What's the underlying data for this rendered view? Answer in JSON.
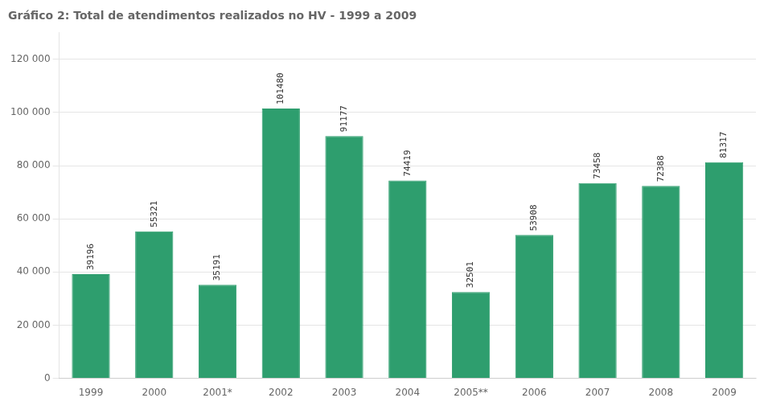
{
  "chart_data": {
    "type": "bar",
    "title": "Gráfico 2: Total de atendimentos realizados no HV - 1999 a 2009",
    "categories": [
      "1999",
      "2000",
      "2001*",
      "2002",
      "2003",
      "2004",
      "2005**",
      "2006",
      "2007",
      "2008",
      "2009"
    ],
    "values": [
      39196,
      55321,
      35191,
      101480,
      91177,
      74419,
      32501,
      53908,
      73458,
      72388,
      81317
    ],
    "color": "#2e9e6e",
    "ylim": [
      0,
      130000
    ],
    "yticks": [
      0,
      {
        "value": 20000,
        "label": "20 000"
      },
      {
        "value": 40000,
        "label": "40 000"
      },
      {
        "value": 60000,
        "label": "60 000"
      },
      {
        "value": 80000,
        "label": "80 000"
      },
      {
        "value": 100000,
        "label": "100 000"
      },
      {
        "value": 120000,
        "label": "120 000"
      }
    ],
    "grid": true,
    "data_labels": true
  }
}
